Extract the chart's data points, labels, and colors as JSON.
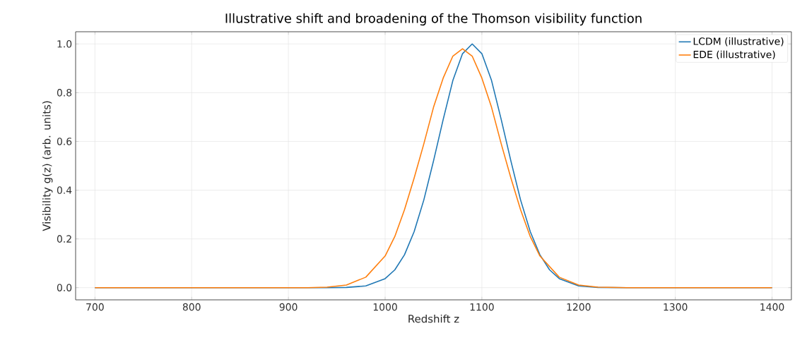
{
  "chart_data": {
    "type": "line",
    "title": "Illustrative shift and broadening of the Thomson visibility function",
    "xlabel": "Redshift z",
    "ylabel": "Visibility g(z) (arb. units)",
    "series": [
      {
        "name": "LCDM (illustrative)",
        "color": "#1f77b4",
        "x": [
          700,
          900,
          940,
          960,
          980,
          1000,
          1010,
          1020,
          1030,
          1040,
          1050,
          1060,
          1070,
          1080,
          1090,
          1100,
          1110,
          1120,
          1130,
          1140,
          1150,
          1160,
          1170,
          1180,
          1200,
          1220,
          1250,
          1400
        ],
        "values": [
          0,
          0,
          0,
          0.001,
          0.007,
          0.037,
          0.073,
          0.135,
          0.23,
          0.36,
          0.52,
          0.69,
          0.85,
          0.96,
          1.0,
          0.96,
          0.85,
          0.69,
          0.52,
          0.36,
          0.23,
          0.135,
          0.073,
          0.037,
          0.007,
          0.001,
          0,
          0
        ]
      },
      {
        "name": "EDE (illustrative)",
        "color": "#ff7f0e",
        "x": [
          700,
          900,
          920,
          940,
          960,
          980,
          1000,
          1010,
          1020,
          1030,
          1040,
          1050,
          1060,
          1070,
          1080,
          1090,
          1100,
          1110,
          1120,
          1130,
          1140,
          1150,
          1160,
          1180,
          1200,
          1220,
          1250,
          1400
        ],
        "values": [
          0,
          0,
          0,
          0.002,
          0.011,
          0.043,
          0.13,
          0.21,
          0.32,
          0.45,
          0.59,
          0.74,
          0.86,
          0.95,
          0.98,
          0.95,
          0.86,
          0.74,
          0.59,
          0.45,
          0.32,
          0.21,
          0.13,
          0.043,
          0.011,
          0.002,
          0,
          0
        ]
      }
    ],
    "xlim": [
      680,
      1420
    ],
    "ylim": [
      -0.05,
      1.05
    ],
    "xticks": [
      700,
      800,
      900,
      1000,
      1100,
      1200,
      1300,
      1400
    ],
    "yticks": [
      {
        "value": 0,
        "label": "0.0"
      },
      {
        "value": 0.2,
        "label": "0.2"
      },
      {
        "value": 0.4,
        "label": "0.4"
      },
      {
        "value": 0.6,
        "label": "0.6"
      },
      {
        "value": 0.8,
        "label": "0.8"
      },
      {
        "value": 1.0,
        "label": "1.0"
      }
    ],
    "grid": true,
    "legend": "top right",
    "line_style": "solid",
    "marker": "none"
  }
}
